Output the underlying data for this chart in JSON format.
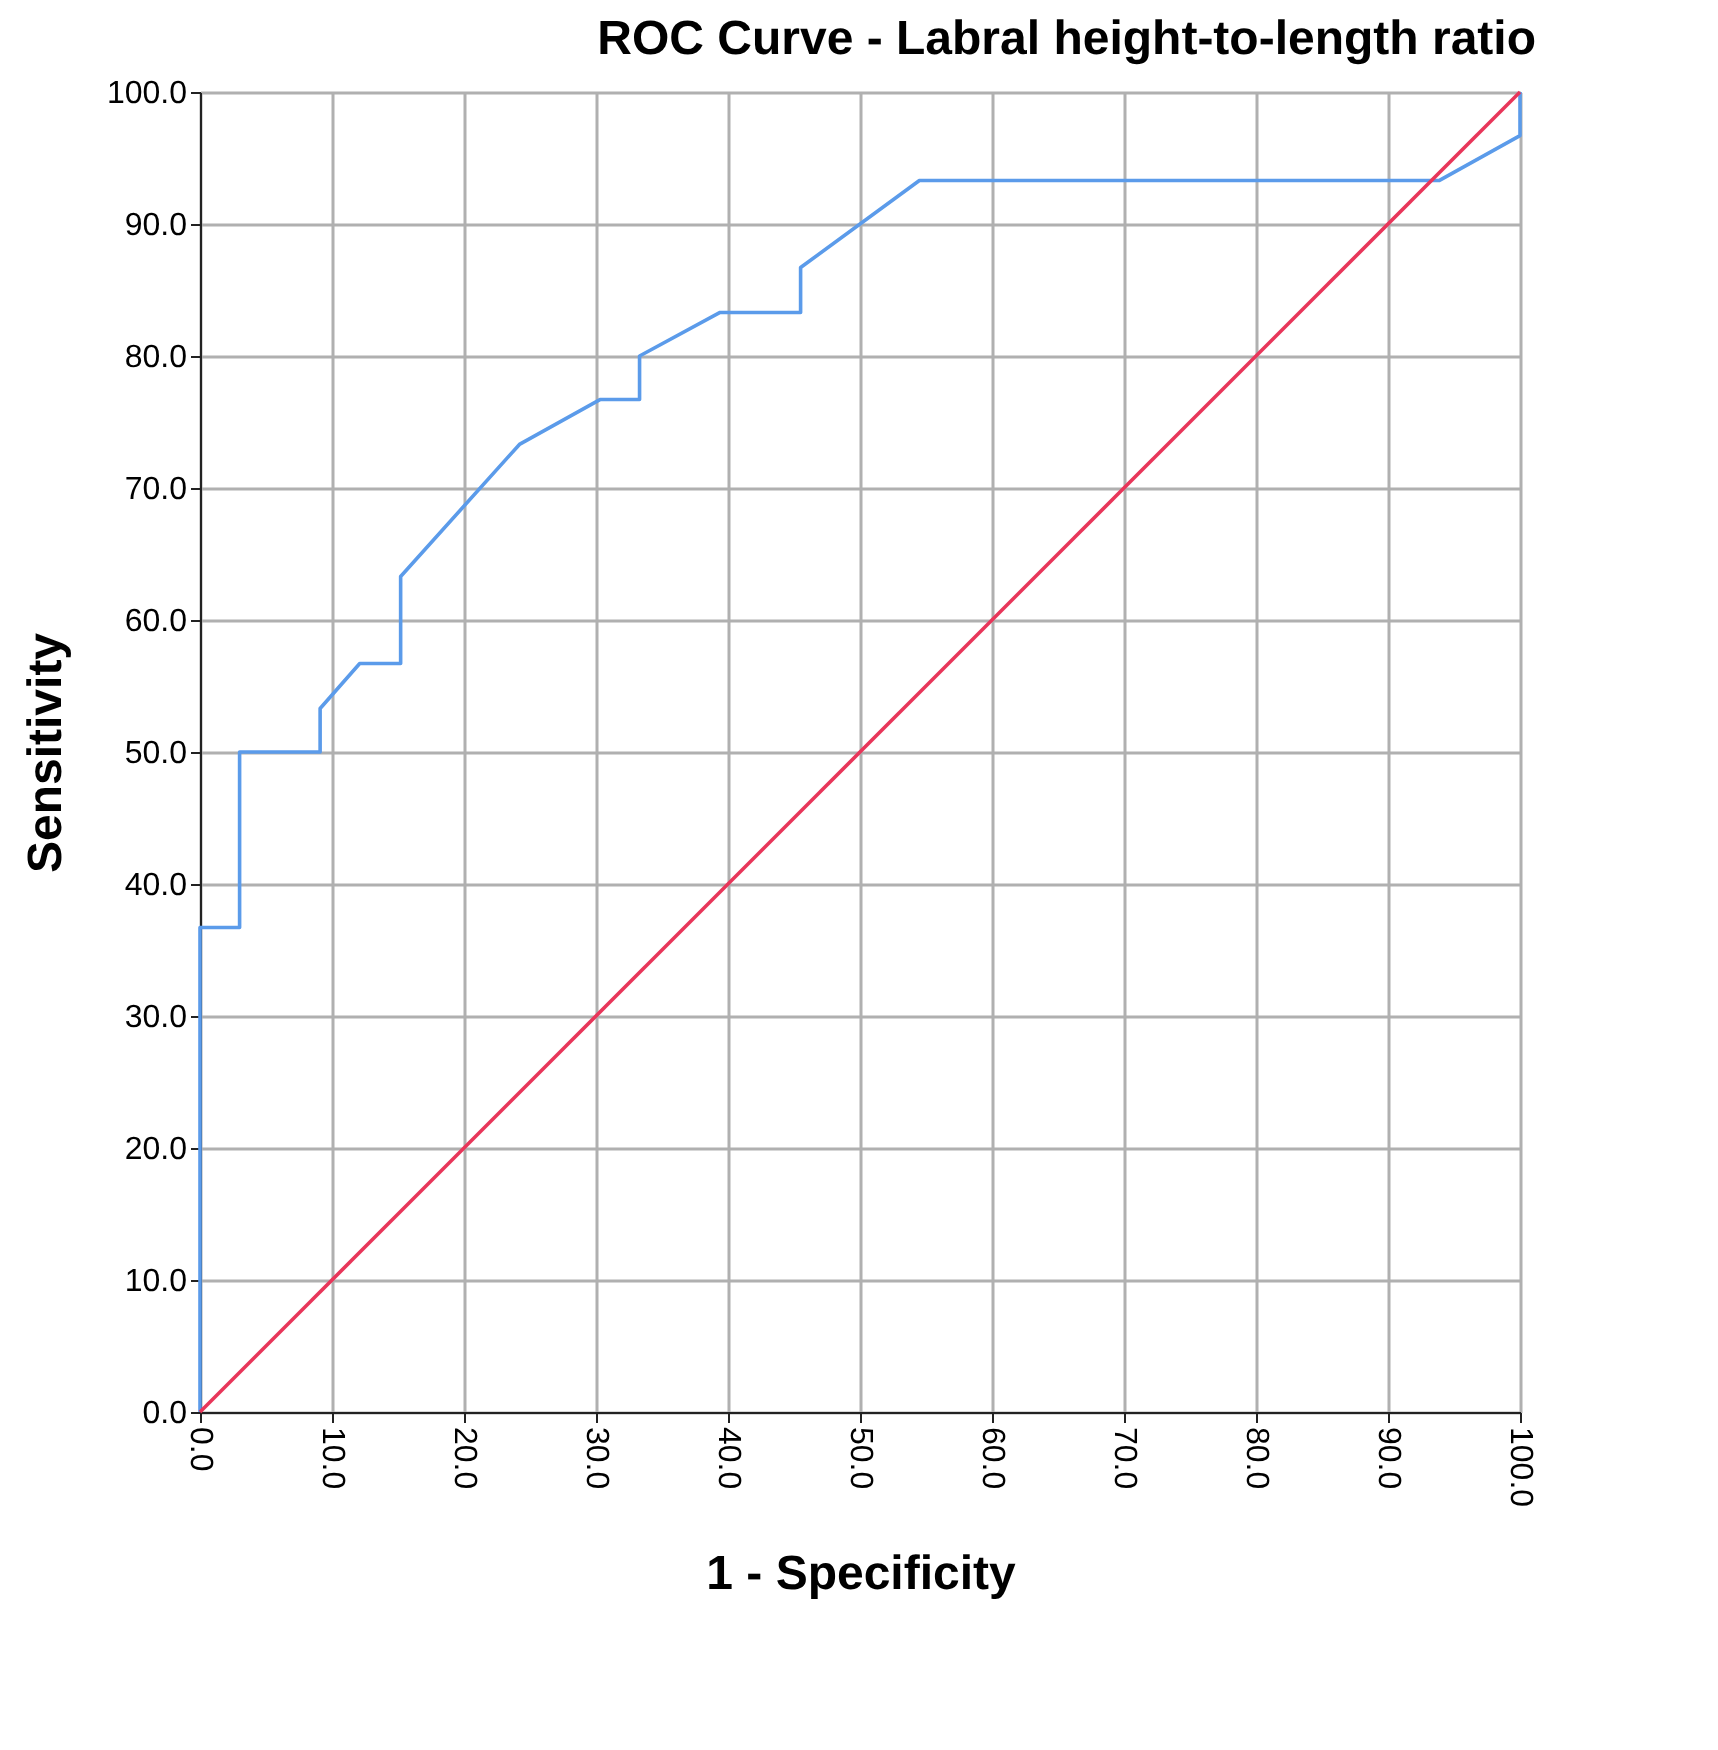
{
  "chart_data": {
    "type": "line",
    "title": "ROC Curve - Labral height-to-length ratio",
    "xlabel": "1 - Specificity",
    "ylabel": "Sensitivity",
    "xlim": [
      0,
      100
    ],
    "ylim": [
      0,
      100
    ],
    "xticks": [
      {
        "value": 0,
        "label": "0.0"
      },
      {
        "value": 10,
        "label": "10.0"
      },
      {
        "value": 20,
        "label": "20.0"
      },
      {
        "value": 30,
        "label": "30.0"
      },
      {
        "value": 40,
        "label": "40.0"
      },
      {
        "value": 50,
        "label": "50.0"
      },
      {
        "value": 60,
        "label": "60.0"
      },
      {
        "value": 70,
        "label": "70.0"
      },
      {
        "value": 80,
        "label": "80.0"
      },
      {
        "value": 90,
        "label": "90.0"
      },
      {
        "value": 100,
        "label": "100.0"
      }
    ],
    "yticks": [
      {
        "value": 0,
        "label": "0.0"
      },
      {
        "value": 10,
        "label": "10.0"
      },
      {
        "value": 20,
        "label": "20.0"
      },
      {
        "value": 30,
        "label": "30.0"
      },
      {
        "value": 40,
        "label": "40.0"
      },
      {
        "value": 50,
        "label": "50.0"
      },
      {
        "value": 60,
        "label": "60.0"
      },
      {
        "value": 70,
        "label": "70.0"
      },
      {
        "value": 80,
        "label": "80.0"
      },
      {
        "value": 90,
        "label": "90.0"
      },
      {
        "value": 100,
        "label": "100.0"
      }
    ],
    "grid": true,
    "marker": "none",
    "line_style": "solid",
    "series": [
      {
        "color": "#5b9bea",
        "x": [
          0,
          0,
          3.0,
          3.0,
          9.1,
          9.1,
          12.1,
          15.2,
          15.2,
          24.2,
          30.3,
          33.3,
          33.3,
          39.4,
          45.5,
          45.5,
          54.5,
          93.9,
          100,
          100
        ],
        "values": [
          0,
          36.7,
          36.7,
          50,
          50,
          53.3,
          56.7,
          56.7,
          63.3,
          73.3,
          76.7,
          76.7,
          80,
          83.3,
          83.3,
          86.7,
          93.3,
          93.3,
          96.7,
          100
        ]
      },
      {
        "color": "#e8365a",
        "x": [
          0,
          100
        ],
        "values": [
          0,
          100
        ]
      }
    ]
  }
}
